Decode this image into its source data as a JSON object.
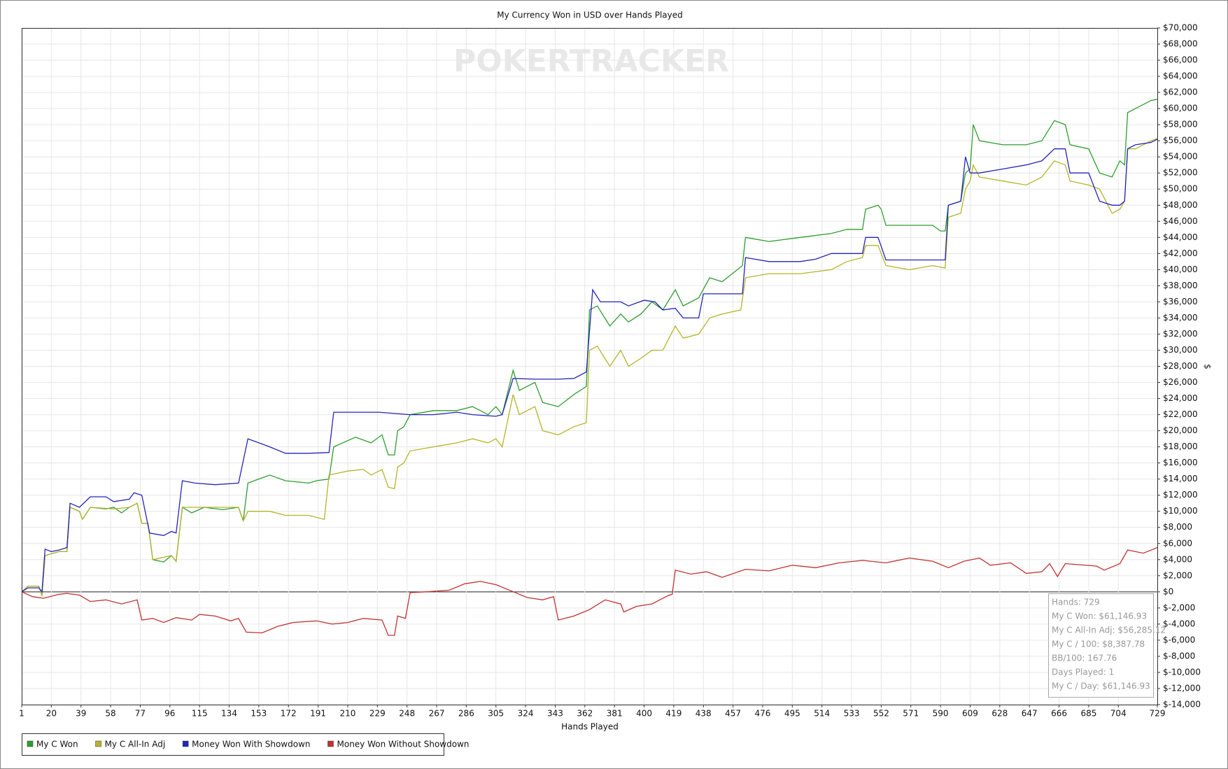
{
  "chart_data": {
    "type": "line",
    "title": "My Currency Won in USD over Hands Played",
    "watermark": "POKERTRACKER",
    "x_label": "Hands Played",
    "y_label": "$",
    "xlim": [
      1,
      729
    ],
    "xticks": [
      1,
      20,
      39,
      58,
      77,
      96,
      115,
      134,
      153,
      172,
      191,
      210,
      229,
      248,
      267,
      286,
      305,
      324,
      343,
      362,
      381,
      400,
      419,
      438,
      457,
      476,
      495,
      514,
      533,
      552,
      571,
      590,
      609,
      628,
      647,
      666,
      685,
      704,
      729
    ],
    "ylim": [
      -14000,
      70000
    ],
    "yticks": [
      {
        "value": -14000,
        "label": "$-14,000"
      },
      {
        "value": -12000,
        "label": "$-12,000"
      },
      {
        "value": -10000,
        "label": "$-10,000"
      },
      {
        "value": -8000,
        "label": "$-8,000"
      },
      {
        "value": -6000,
        "label": "$-6,000"
      },
      {
        "value": -4000,
        "label": "$-4,000"
      },
      {
        "value": -2000,
        "label": "$-2,000"
      },
      {
        "value": 0,
        "label": "$0"
      },
      {
        "value": 2000,
        "label": "$2,000"
      },
      {
        "value": 4000,
        "label": "$4,000"
      },
      {
        "value": 6000,
        "label": "$6,000"
      },
      {
        "value": 8000,
        "label": "$8,000"
      },
      {
        "value": 10000,
        "label": "$10,000"
      },
      {
        "value": 12000,
        "label": "$12,000"
      },
      {
        "value": 14000,
        "label": "$14,000"
      },
      {
        "value": 16000,
        "label": "$16,000"
      },
      {
        "value": 18000,
        "label": "$18,000"
      },
      {
        "value": 20000,
        "label": "$20,000"
      },
      {
        "value": 22000,
        "label": "$22,000"
      },
      {
        "value": 24000,
        "label": "$24,000"
      },
      {
        "value": 26000,
        "label": "$26,000"
      },
      {
        "value": 28000,
        "label": "$28,000"
      },
      {
        "value": 30000,
        "label": "$30,000"
      },
      {
        "value": 32000,
        "label": "$32,000"
      },
      {
        "value": 34000,
        "label": "$34,000"
      },
      {
        "value": 36000,
        "label": "$36,000"
      },
      {
        "value": 38000,
        "label": "$38,000"
      },
      {
        "value": 40000,
        "label": "$40,000"
      },
      {
        "value": 42000,
        "label": "$42,000"
      },
      {
        "value": 44000,
        "label": "$44,000"
      },
      {
        "value": 46000,
        "label": "$46,000"
      },
      {
        "value": 48000,
        "label": "$48,000"
      },
      {
        "value": 50000,
        "label": "$50,000"
      },
      {
        "value": 52000,
        "label": "$52,000"
      },
      {
        "value": 54000,
        "label": "$54,000"
      },
      {
        "value": 56000,
        "label": "$56,000"
      },
      {
        "value": 58000,
        "label": "$58,000"
      },
      {
        "value": 60000,
        "label": "$60,000"
      },
      {
        "value": 62000,
        "label": "$62,000"
      },
      {
        "value": 64000,
        "label": "$64,000"
      },
      {
        "value": 66000,
        "label": "$66,000"
      },
      {
        "value": 68000,
        "label": "$68,000"
      },
      {
        "value": 70000,
        "label": "$70,000"
      }
    ],
    "grid": true,
    "legend": "bottom-left",
    "series": [
      {
        "name": "My C Won",
        "color": "#2e9e2e",
        "x": [
          1,
          5,
          12,
          14,
          16,
          25,
          30,
          32,
          38,
          40,
          45,
          55,
          60,
          65,
          70,
          75,
          78,
          82,
          85,
          92,
          97,
          100,
          104,
          110,
          118,
          130,
          140,
          143,
          146,
          160,
          170,
          185,
          190,
          198,
          201,
          215,
          225,
          232,
          236,
          240,
          242,
          246,
          250,
          265,
          280,
          290,
          300,
          305,
          309,
          316,
          320,
          330,
          335,
          345,
          355,
          363,
          365,
          370,
          378,
          385,
          390,
          398,
          405,
          412,
          420,
          425,
          435,
          442,
          450,
          463,
          465,
          480,
          500,
          520,
          530,
          540,
          542,
          550,
          552,
          555,
          570,
          585,
          590,
          593,
          595,
          603,
          606,
          609,
          611,
          615,
          630,
          645,
          655,
          663,
          670,
          673,
          685,
          692,
          700,
          705,
          708,
          710,
          715,
          725,
          729
        ],
        "values": [
          0,
          700,
          700,
          -500,
          4500,
          5000,
          5000,
          10500,
          10000,
          9000,
          10500,
          10300,
          10500,
          9800,
          10500,
          11000,
          8500,
          8500,
          4000,
          3700,
          4500,
          3800,
          10500,
          9800,
          10500,
          10200,
          10500,
          8800,
          13500,
          14500,
          13800,
          13500,
          13800,
          14000,
          18000,
          19200,
          18500,
          19500,
          17000,
          17000,
          20000,
          20500,
          22000,
          22500,
          22500,
          23000,
          22000,
          23000,
          22000,
          27500,
          25000,
          26000,
          23500,
          23000,
          24500,
          25500,
          35000,
          35500,
          33000,
          34500,
          33500,
          34500,
          36000,
          35000,
          37500,
          35500,
          36500,
          39000,
          38500,
          40500,
          44000,
          43500,
          44000,
          44500,
          45000,
          45000,
          47500,
          48000,
          47500,
          45500,
          45500,
          45500,
          44800,
          44800,
          48000,
          48500,
          52000,
          52500,
          58000,
          56000,
          55500,
          55500,
          56000,
          58500,
          58000,
          55500,
          55000,
          52000,
          51500,
          53500,
          53000,
          59500,
          60000,
          61000,
          61146.93
        ]
      },
      {
        "name": "My C All-In Adj",
        "color": "#b4b42a",
        "x": [
          1,
          5,
          12,
          14,
          16,
          25,
          30,
          32,
          38,
          40,
          45,
          60,
          70,
          75,
          78,
          82,
          85,
          97,
          100,
          104,
          118,
          140,
          143,
          146,
          160,
          170,
          185,
          195,
          198,
          210,
          220,
          225,
          232,
          236,
          240,
          242,
          246,
          250,
          265,
          280,
          290,
          300,
          305,
          309,
          316,
          320,
          330,
          335,
          345,
          355,
          363,
          365,
          370,
          378,
          385,
          390,
          398,
          405,
          412,
          420,
          425,
          435,
          442,
          450,
          462,
          465,
          480,
          500,
          520,
          530,
          540,
          542,
          550,
          555,
          570,
          585,
          593,
          595,
          603,
          606,
          609,
          611,
          615,
          630,
          645,
          655,
          663,
          670,
          673,
          685,
          692,
          700,
          705,
          708,
          710,
          715,
          725,
          729
        ],
        "values": [
          0,
          700,
          700,
          -500,
          4500,
          5000,
          5000,
          10500,
          10000,
          9000,
          10500,
          10300,
          10500,
          11000,
          8500,
          8500,
          4000,
          4500,
          3800,
          10500,
          10500,
          10500,
          8800,
          10000,
          10000,
          9500,
          9500,
          9000,
          14500,
          15000,
          15200,
          14500,
          15200,
          13000,
          12800,
          15500,
          16000,
          17500,
          18000,
          18500,
          19000,
          18500,
          19000,
          18000,
          24500,
          22000,
          23000,
          20000,
          19500,
          20500,
          21000,
          30000,
          30500,
          28000,
          30000,
          28000,
          29000,
          30000,
          30000,
          33000,
          31500,
          32000,
          34000,
          34500,
          35000,
          39000,
          39500,
          39500,
          40000,
          41000,
          41500,
          43000,
          43000,
          40500,
          40000,
          40500,
          40200,
          46500,
          47000,
          50000,
          51000,
          53000,
          51500,
          51000,
          50500,
          51500,
          53500,
          53000,
          51000,
          50500,
          50000,
          47000,
          47500,
          48500,
          55000,
          55000,
          56000,
          56285.12
        ]
      },
      {
        "name": "Money Won With Showdown",
        "color": "#2424b8",
        "x": [
          1,
          5,
          12,
          14,
          16,
          20,
          25,
          30,
          32,
          38,
          45,
          55,
          60,
          70,
          73,
          78,
          83,
          92,
          97,
          100,
          104,
          112,
          125,
          140,
          146,
          160,
          170,
          185,
          198,
          201,
          230,
          250,
          265,
          280,
          290,
          305,
          309,
          316,
          330,
          345,
          355,
          363,
          367,
          372,
          385,
          390,
          400,
          407,
          412,
          420,
          425,
          435,
          438,
          450,
          463,
          465,
          480,
          500,
          510,
          520,
          530,
          540,
          542,
          550,
          555,
          590,
          593,
          595,
          603,
          606,
          609,
          615,
          630,
          645,
          655,
          663,
          670,
          673,
          685,
          692,
          700,
          705,
          708,
          710,
          715,
          725,
          729
        ],
        "values": [
          0,
          500,
          500,
          0,
          5300,
          5000,
          5200,
          5500,
          11000,
          10500,
          11800,
          11800,
          11200,
          11500,
          12300,
          12000,
          7300,
          7000,
          7500,
          7300,
          13800,
          13500,
          13300,
          13500,
          19000,
          18000,
          17200,
          17200,
          17300,
          22300,
          22300,
          22000,
          22000,
          22300,
          22000,
          21800,
          22000,
          26500,
          26400,
          26400,
          26500,
          27300,
          37500,
          36000,
          36000,
          35500,
          36200,
          36000,
          35000,
          35200,
          34000,
          34000,
          37000,
          37000,
          37000,
          41500,
          41000,
          41000,
          41300,
          42000,
          42000,
          42000,
          44000,
          44000,
          41200,
          41200,
          41200,
          48000,
          48500,
          54000,
          52000,
          52000,
          52500,
          53000,
          53500,
          55000,
          55000,
          52000,
          52000,
          48500,
          48000,
          48000,
          48500,
          55000,
          55500,
          55800,
          56200
        ]
      },
      {
        "name": "Money Won Without Showdown",
        "color": "#c03232",
        "x": [
          1,
          8,
          15,
          25,
          30,
          38,
          45,
          55,
          65,
          75,
          78,
          85,
          92,
          100,
          110,
          115,
          125,
          135,
          140,
          145,
          155,
          165,
          175,
          190,
          200,
          210,
          220,
          232,
          236,
          240,
          242,
          247,
          250,
          260,
          275,
          285,
          295,
          305,
          315,
          325,
          335,
          342,
          345,
          355,
          365,
          375,
          385,
          387,
          395,
          405,
          415,
          418,
          420,
          430,
          440,
          450,
          465,
          480,
          495,
          510,
          525,
          540,
          555,
          570,
          585,
          595,
          605,
          615,
          622,
          635,
          645,
          655,
          660,
          665,
          670,
          690,
          695,
          705,
          710,
          720,
          729
        ],
        "values": [
          0,
          -600,
          -800,
          -300,
          -200,
          -400,
          -1200,
          -1000,
          -1500,
          -1000,
          -3500,
          -3300,
          -3800,
          -3200,
          -3500,
          -2800,
          -3000,
          -3600,
          -3300,
          -5000,
          -5100,
          -4300,
          -3800,
          -3600,
          -4000,
          -3800,
          -3300,
          -3500,
          -5400,
          -5400,
          -3000,
          -3300,
          -100,
          0,
          200,
          1000,
          1300,
          900,
          100,
          -700,
          -1000,
          -600,
          -3500,
          -3000,
          -2200,
          -1000,
          -1500,
          -2500,
          -1800,
          -1500,
          -500,
          -300,
          2700,
          2200,
          2500,
          1800,
          2800,
          2600,
          3300,
          3000,
          3600,
          3900,
          3600,
          4200,
          3800,
          3000,
          3800,
          4200,
          3300,
          3600,
          2300,
          2500,
          3500,
          1900,
          3500,
          3200,
          2700,
          3500,
          5200,
          4800,
          5500
        ]
      }
    ],
    "info_box": [
      "Hands: 729",
      "My C Won: $61,146.93",
      "My C All-In Adj: $56,285.12",
      "My C / 100: $8,387.78",
      "BB/100: 167.76",
      "Days Played: 1",
      "My C / Day: $61,146.93"
    ]
  }
}
